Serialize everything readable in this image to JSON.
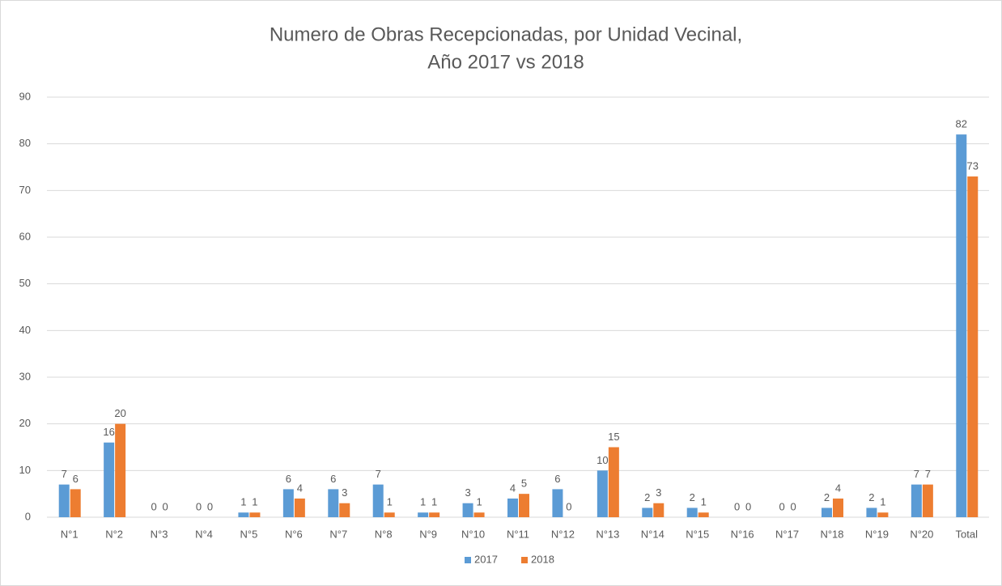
{
  "chart_data": {
    "type": "bar",
    "title": [
      "Numero de Obras Recepcionadas,  por Unidad Vecinal,",
      "Año 2017 vs 2018"
    ],
    "categories": [
      "N°1",
      "N°2",
      "N°3",
      "N°4",
      "N°5",
      "N°6",
      "N°7",
      "N°8",
      "N°9",
      "N°10",
      "N°11",
      "N°12",
      "N°13",
      "N°14",
      "N°15",
      "N°16",
      "N°17",
      "N°18",
      "N°19",
      "N°20",
      "Total"
    ],
    "series": [
      {
        "name": "2017",
        "color": "#5b9bd5",
        "values": [
          7,
          16,
          0,
          0,
          1,
          6,
          6,
          7,
          1,
          3,
          4,
          6,
          10,
          2,
          2,
          0,
          0,
          2,
          2,
          7,
          82
        ]
      },
      {
        "name": "2018",
        "color": "#ed7d31",
        "values": [
          6,
          20,
          0,
          0,
          1,
          4,
          3,
          1,
          1,
          1,
          5,
          0,
          15,
          3,
          1,
          0,
          0,
          4,
          1,
          7,
          73
        ]
      }
    ],
    "ylim": [
      0,
      90
    ],
    "yticks": [
      0,
      10,
      20,
      30,
      40,
      50,
      60,
      70,
      80,
      90
    ],
    "grid": true,
    "legend": "bottom"
  }
}
